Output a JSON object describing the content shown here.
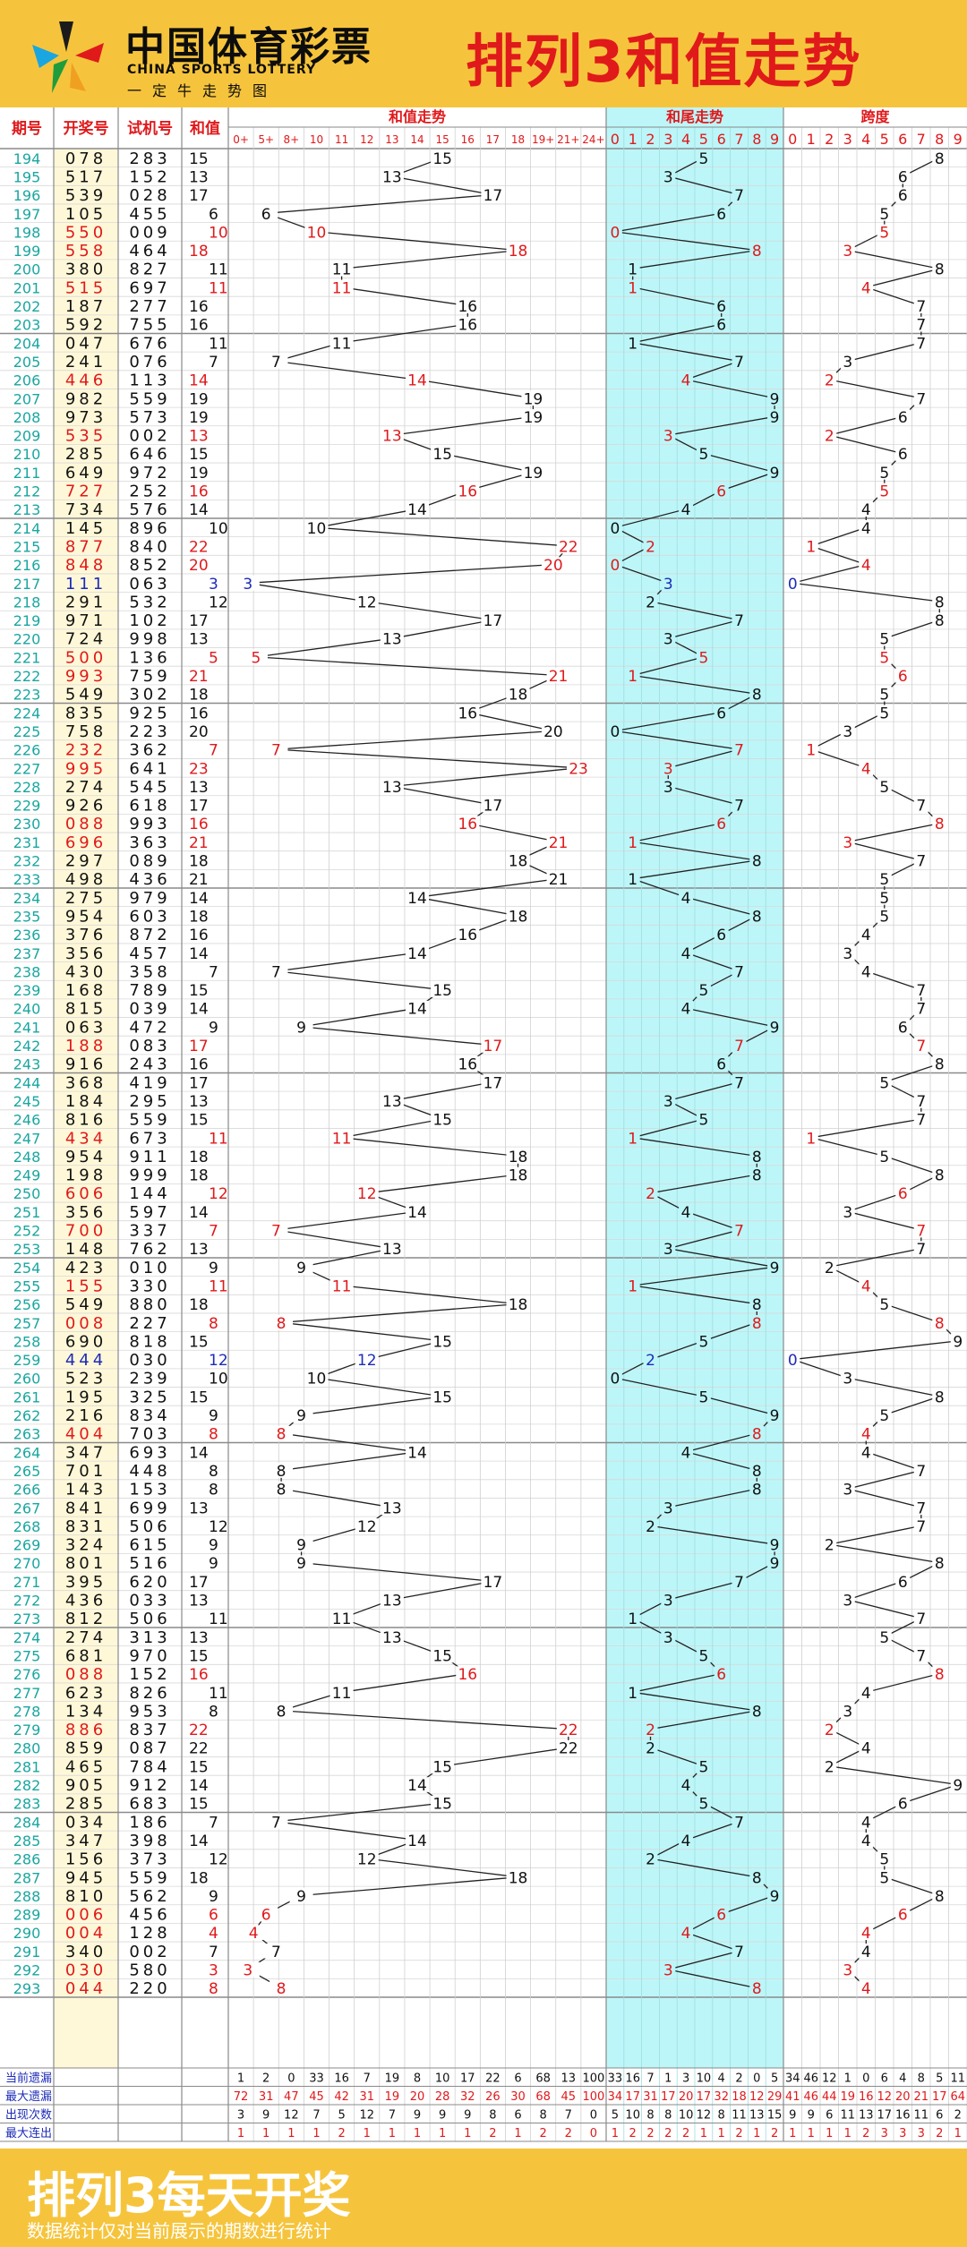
{
  "header": {
    "logo_cn": "中国体育彩票",
    "logo_en": "CHINA SPORTS LOTTERY",
    "logo_slogan": "一定牛走势图",
    "title": "排列3和值走势"
  },
  "footer": {
    "title": "排列3每天开奖",
    "note": "数据统计仅对当前展示的期数进行统计"
  },
  "colors": {
    "header_bg": "#f6c43c",
    "title_red": "#e0191b",
    "draw_red": "#e0191b",
    "test_blue": "#1c2bb8",
    "issue_teal": "#1aa6a0",
    "tail_bg": "#bdf6f8",
    "draw_col_bg": "#fff8d8"
  },
  "chart_data": {
    "type": "table",
    "columns": {
      "issue": "期号",
      "draw": "开奖号",
      "test": "试机号",
      "sum": "和值",
      "sum_trend": "和值走势",
      "tail_trend": "和尾走势",
      "span": "跨度"
    },
    "sum_buckets": [
      "0+",
      "5+",
      "8+",
      "10",
      "11",
      "12",
      "13",
      "14",
      "15",
      "16",
      "17",
      "18",
      "19+",
      "21+",
      "24+"
    ],
    "digits": [
      "0",
      "1",
      "2",
      "3",
      "4",
      "5",
      "6",
      "7",
      "8",
      "9"
    ],
    "rows": [
      {
        "issue": "194",
        "draw": "078",
        "test": "283",
        "sum": 15,
        "type": "p"
      },
      {
        "issue": "195",
        "draw": "517",
        "test": "152",
        "sum": 13,
        "type": "p"
      },
      {
        "issue": "196",
        "draw": "539",
        "test": "028",
        "sum": 17,
        "type": "p"
      },
      {
        "issue": "197",
        "draw": "105",
        "test": "455",
        "sum": 6,
        "type": "p"
      },
      {
        "issue": "198",
        "draw": "550",
        "test": "009",
        "sum": 10,
        "type": "r"
      },
      {
        "issue": "199",
        "draw": "558",
        "test": "464",
        "sum": 18,
        "type": "r"
      },
      {
        "issue": "200",
        "draw": "380",
        "test": "827",
        "sum": 11,
        "type": "p"
      },
      {
        "issue": "201",
        "draw": "515",
        "test": "697",
        "sum": 11,
        "type": "r"
      },
      {
        "issue": "202",
        "draw": "187",
        "test": "277",
        "sum": 16,
        "type": "p"
      },
      {
        "issue": "203",
        "draw": "592",
        "test": "755",
        "sum": 16,
        "type": "p"
      },
      {
        "issue": "204",
        "draw": "047",
        "test": "676",
        "sum": 11,
        "type": "p"
      },
      {
        "issue": "205",
        "draw": "241",
        "test": "076",
        "sum": 7,
        "type": "p"
      },
      {
        "issue": "206",
        "draw": "446",
        "test": "113",
        "sum": 14,
        "type": "r"
      },
      {
        "issue": "207",
        "draw": "982",
        "test": "559",
        "sum": 19,
        "type": "p"
      },
      {
        "issue": "208",
        "draw": "973",
        "test": "573",
        "sum": 19,
        "type": "p"
      },
      {
        "issue": "209",
        "draw": "535",
        "test": "002",
        "sum": 13,
        "type": "r"
      },
      {
        "issue": "210",
        "draw": "285",
        "test": "646",
        "sum": 15,
        "type": "p"
      },
      {
        "issue": "211",
        "draw": "649",
        "test": "972",
        "sum": 19,
        "type": "p"
      },
      {
        "issue": "212",
        "draw": "727",
        "test": "252",
        "sum": 16,
        "type": "r"
      },
      {
        "issue": "213",
        "draw": "734",
        "test": "576",
        "sum": 14,
        "type": "p"
      },
      {
        "issue": "214",
        "draw": "145",
        "test": "896",
        "sum": 10,
        "type": "p"
      },
      {
        "issue": "215",
        "draw": "877",
        "test": "840",
        "sum": 22,
        "type": "r"
      },
      {
        "issue": "216",
        "draw": "848",
        "test": "852",
        "sum": 20,
        "type": "r"
      },
      {
        "issue": "217",
        "draw": "111",
        "test": "063",
        "sum": 3,
        "type": "b"
      },
      {
        "issue": "218",
        "draw": "291",
        "test": "532",
        "sum": 12,
        "type": "p"
      },
      {
        "issue": "219",
        "draw": "971",
        "test": "102",
        "sum": 17,
        "type": "p"
      },
      {
        "issue": "220",
        "draw": "724",
        "test": "998",
        "sum": 13,
        "type": "p"
      },
      {
        "issue": "221",
        "draw": "500",
        "test": "136",
        "sum": 5,
        "type": "r"
      },
      {
        "issue": "222",
        "draw": "993",
        "test": "759",
        "sum": 21,
        "type": "r"
      },
      {
        "issue": "223",
        "draw": "549",
        "test": "302",
        "sum": 18,
        "type": "p"
      },
      {
        "issue": "224",
        "draw": "835",
        "test": "925",
        "sum": 16,
        "type": "p"
      },
      {
        "issue": "225",
        "draw": "758",
        "test": "223",
        "sum": 20,
        "type": "p"
      },
      {
        "issue": "226",
        "draw": "232",
        "test": "362",
        "sum": 7,
        "type": "r"
      },
      {
        "issue": "227",
        "draw": "995",
        "test": "641",
        "sum": 23,
        "type": "r"
      },
      {
        "issue": "228",
        "draw": "274",
        "test": "545",
        "sum": 13,
        "type": "p"
      },
      {
        "issue": "229",
        "draw": "926",
        "test": "618",
        "sum": 17,
        "type": "p"
      },
      {
        "issue": "230",
        "draw": "088",
        "test": "993",
        "sum": 16,
        "type": "r"
      },
      {
        "issue": "231",
        "draw": "696",
        "test": "363",
        "sum": 21,
        "type": "r"
      },
      {
        "issue": "232",
        "draw": "297",
        "test": "089",
        "sum": 18,
        "type": "p"
      },
      {
        "issue": "233",
        "draw": "498",
        "test": "436",
        "sum": 21,
        "type": "p"
      },
      {
        "issue": "234",
        "draw": "275",
        "test": "979",
        "sum": 14,
        "type": "p"
      },
      {
        "issue": "235",
        "draw": "954",
        "test": "603",
        "sum": 18,
        "type": "p"
      },
      {
        "issue": "236",
        "draw": "376",
        "test": "872",
        "sum": 16,
        "type": "p"
      },
      {
        "issue": "237",
        "draw": "356",
        "test": "457",
        "sum": 14,
        "type": "p"
      },
      {
        "issue": "238",
        "draw": "430",
        "test": "358",
        "sum": 7,
        "type": "p"
      },
      {
        "issue": "239",
        "draw": "168",
        "test": "789",
        "sum": 15,
        "type": "p"
      },
      {
        "issue": "240",
        "draw": "815",
        "test": "039",
        "sum": 14,
        "type": "p"
      },
      {
        "issue": "241",
        "draw": "063",
        "test": "472",
        "sum": 9,
        "type": "p"
      },
      {
        "issue": "242",
        "draw": "188",
        "test": "083",
        "sum": 17,
        "type": "r"
      },
      {
        "issue": "243",
        "draw": "916",
        "test": "243",
        "sum": 16,
        "type": "p"
      },
      {
        "issue": "244",
        "draw": "368",
        "test": "419",
        "sum": 17,
        "type": "p"
      },
      {
        "issue": "245",
        "draw": "184",
        "test": "295",
        "sum": 13,
        "type": "p"
      },
      {
        "issue": "246",
        "draw": "816",
        "test": "559",
        "sum": 15,
        "type": "p"
      },
      {
        "issue": "247",
        "draw": "434",
        "test": "673",
        "sum": 11,
        "type": "r"
      },
      {
        "issue": "248",
        "draw": "954",
        "test": "911",
        "sum": 18,
        "type": "p"
      },
      {
        "issue": "249",
        "draw": "198",
        "test": "999",
        "sum": 18,
        "type": "p"
      },
      {
        "issue": "250",
        "draw": "606",
        "test": "144",
        "sum": 12,
        "type": "r"
      },
      {
        "issue": "251",
        "draw": "356",
        "test": "597",
        "sum": 14,
        "type": "p"
      },
      {
        "issue": "252",
        "draw": "700",
        "test": "337",
        "sum": 7,
        "type": "r"
      },
      {
        "issue": "253",
        "draw": "148",
        "test": "762",
        "sum": 13,
        "type": "p"
      },
      {
        "issue": "254",
        "draw": "423",
        "test": "010",
        "sum": 9,
        "type": "p"
      },
      {
        "issue": "255",
        "draw": "155",
        "test": "330",
        "sum": 11,
        "type": "r"
      },
      {
        "issue": "256",
        "draw": "549",
        "test": "880",
        "sum": 18,
        "type": "p"
      },
      {
        "issue": "257",
        "draw": "008",
        "test": "227",
        "sum": 8,
        "type": "r"
      },
      {
        "issue": "258",
        "draw": "690",
        "test": "818",
        "sum": 15,
        "type": "p"
      },
      {
        "issue": "259",
        "draw": "444",
        "test": "030",
        "sum": 12,
        "type": "b"
      },
      {
        "issue": "260",
        "draw": "523",
        "test": "239",
        "sum": 10,
        "type": "p"
      },
      {
        "issue": "261",
        "draw": "195",
        "test": "325",
        "sum": 15,
        "type": "p"
      },
      {
        "issue": "262",
        "draw": "216",
        "test": "834",
        "sum": 9,
        "type": "p"
      },
      {
        "issue": "263",
        "draw": "404",
        "test": "703",
        "sum": 8,
        "type": "r"
      },
      {
        "issue": "264",
        "draw": "347",
        "test": "693",
        "sum": 14,
        "type": "p"
      },
      {
        "issue": "265",
        "draw": "701",
        "test": "448",
        "sum": 8,
        "type": "p"
      },
      {
        "issue": "266",
        "draw": "143",
        "test": "153",
        "sum": 8,
        "type": "p"
      },
      {
        "issue": "267",
        "draw": "841",
        "test": "699",
        "sum": 13,
        "type": "p"
      },
      {
        "issue": "268",
        "draw": "831",
        "test": "506",
        "sum": 12,
        "type": "p"
      },
      {
        "issue": "269",
        "draw": "324",
        "test": "615",
        "sum": 9,
        "type": "p"
      },
      {
        "issue": "270",
        "draw": "801",
        "test": "516",
        "sum": 9,
        "type": "p"
      },
      {
        "issue": "271",
        "draw": "395",
        "test": "620",
        "sum": 17,
        "type": "p"
      },
      {
        "issue": "272",
        "draw": "436",
        "test": "033",
        "sum": 13,
        "type": "p"
      },
      {
        "issue": "273",
        "draw": "812",
        "test": "506",
        "sum": 11,
        "type": "p"
      },
      {
        "issue": "274",
        "draw": "274",
        "test": "313",
        "sum": 13,
        "type": "p"
      },
      {
        "issue": "275",
        "draw": "681",
        "test": "970",
        "sum": 15,
        "type": "p"
      },
      {
        "issue": "276",
        "draw": "088",
        "test": "152",
        "sum": 16,
        "type": "r"
      },
      {
        "issue": "277",
        "draw": "623",
        "test": "826",
        "sum": 11,
        "type": "p"
      },
      {
        "issue": "278",
        "draw": "134",
        "test": "953",
        "sum": 8,
        "type": "p"
      },
      {
        "issue": "279",
        "draw": "886",
        "test": "837",
        "sum": 22,
        "type": "r"
      },
      {
        "issue": "280",
        "draw": "859",
        "test": "087",
        "sum": 22,
        "type": "p"
      },
      {
        "issue": "281",
        "draw": "465",
        "test": "784",
        "sum": 15,
        "type": "p"
      },
      {
        "issue": "282",
        "draw": "905",
        "test": "912",
        "sum": 14,
        "type": "p"
      },
      {
        "issue": "283",
        "draw": "285",
        "test": "683",
        "sum": 15,
        "type": "p"
      },
      {
        "issue": "284",
        "draw": "034",
        "test": "186",
        "sum": 7,
        "type": "p"
      },
      {
        "issue": "285",
        "draw": "347",
        "test": "398",
        "sum": 14,
        "type": "p"
      },
      {
        "issue": "286",
        "draw": "156",
        "test": "373",
        "sum": 12,
        "type": "p"
      },
      {
        "issue": "287",
        "draw": "945",
        "test": "559",
        "sum": 18,
        "type": "p"
      },
      {
        "issue": "288",
        "draw": "810",
        "test": "562",
        "sum": 9,
        "type": "p"
      },
      {
        "issue": "289",
        "draw": "006",
        "test": "456",
        "sum": 6,
        "type": "r"
      },
      {
        "issue": "290",
        "draw": "004",
        "test": "128",
        "sum": 4,
        "type": "r"
      },
      {
        "issue": "291",
        "draw": "340",
        "test": "002",
        "sum": 7,
        "type": "p"
      },
      {
        "issue": "292",
        "draw": "030",
        "test": "580",
        "sum": 3,
        "type": "r"
      },
      {
        "issue": "293",
        "draw": "044",
        "test": "220",
        "sum": 8,
        "type": "r"
      }
    ],
    "stats": [
      {
        "label": "当前遗漏",
        "sum": [
          1,
          2,
          0,
          33,
          16,
          7,
          19,
          8,
          10,
          17,
          22,
          6,
          68,
          13,
          100
        ],
        "tail": [
          33,
          16,
          7,
          1,
          3,
          10,
          4,
          2,
          0,
          5
        ],
        "span": [
          34,
          46,
          12,
          1,
          0,
          6,
          4,
          8,
          5,
          11
        ]
      },
      {
        "label": "最大遗漏",
        "sum": [
          72,
          31,
          47,
          45,
          42,
          31,
          19,
          20,
          28,
          32,
          26,
          30,
          68,
          45,
          100
        ],
        "tail": [
          34,
          17,
          31,
          17,
          20,
          17,
          32,
          18,
          12,
          29
        ],
        "span": [
          41,
          46,
          44,
          19,
          16,
          12,
          20,
          21,
          17,
          64
        ]
      },
      {
        "label": "出现次数",
        "sum": [
          3,
          9,
          12,
          7,
          5,
          12,
          7,
          9,
          9,
          9,
          8,
          6,
          8,
          7,
          0
        ],
        "tail": [
          5,
          10,
          8,
          8,
          10,
          12,
          8,
          11,
          13,
          15
        ],
        "span": [
          9,
          9,
          6,
          11,
          13,
          17,
          16,
          11,
          6,
          2
        ]
      },
      {
        "label": "最大连出",
        "sum": [
          1,
          1,
          1,
          1,
          2,
          1,
          1,
          1,
          1,
          1,
          2,
          1,
          2,
          2,
          0
        ],
        "tail": [
          1,
          2,
          2,
          2,
          2,
          1,
          1,
          2,
          1,
          2
        ],
        "span": [
          1,
          1,
          1,
          1,
          2,
          3,
          3,
          3,
          2,
          1
        ]
      }
    ]
  }
}
